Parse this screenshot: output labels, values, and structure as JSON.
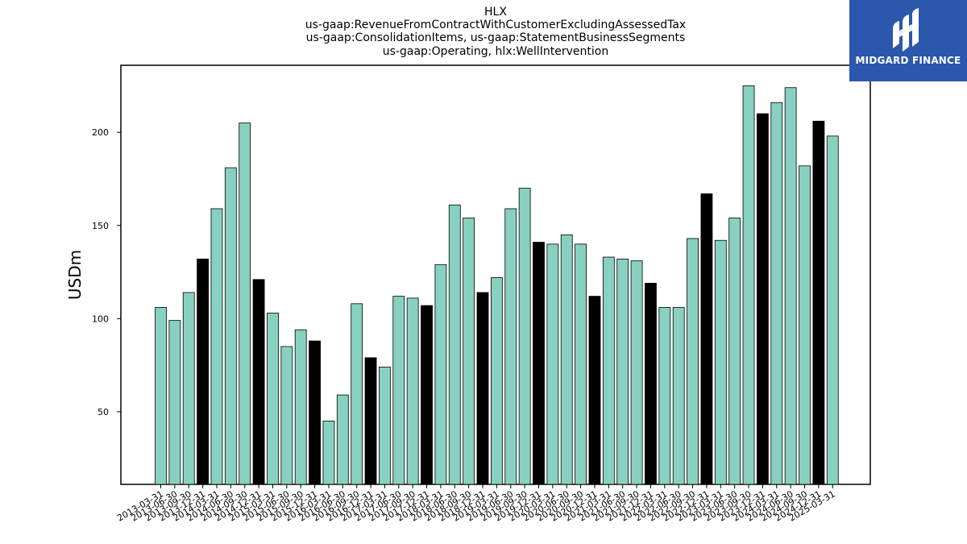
{
  "logo": {
    "text": "MIDGARD FINANCE",
    "color": "#2b57ad"
  },
  "chart_data": {
    "type": "bar",
    "title_lines": [
      "HLX",
      "us-gaap:RevenueFromContractWithCustomerExcludingAssessedTax",
      "us-gaap:ConsolidationItems, us-gaap:StatementBusinessSegments",
      "us-gaap:Operating, hlx:WellIntervention"
    ],
    "ylabel": "USDm",
    "xlabel": "",
    "ylim": [
      11,
      236
    ],
    "yticks": [
      50,
      100,
      150,
      200
    ],
    "grid": false,
    "colors": {
      "quarter": "#88d0c0",
      "annual": "#000000",
      "edge": "#000000"
    },
    "categories": [
      "2013-03-31",
      "2013-06-30",
      "2013-09-30",
      "2013-12-31",
      "2014-03-31",
      "2014-06-30",
      "2014-09-30",
      "2014-12-31",
      "2015-03-31",
      "2015-06-30",
      "2015-09-30",
      "2015-12-31",
      "2016-03-31",
      "2016-06-30",
      "2016-09-30",
      "2016-12-31",
      "2017-03-31",
      "2017-06-30",
      "2017-09-30",
      "2017-12-31",
      "2018-03-31",
      "2018-06-30",
      "2018-09-30",
      "2018-12-31",
      "2019-03-31",
      "2019-06-30",
      "2019-09-30",
      "2019-12-31",
      "2020-03-31",
      "2020-06-30",
      "2020-09-30",
      "2020-12-31",
      "2021-03-31",
      "2021-06-30",
      "2021-09-30",
      "2021-12-31",
      "2022-03-31",
      "2022-06-30",
      "2022-09-30",
      "2022-12-31",
      "2023-03-31",
      "2023-06-30",
      "2023-09-30",
      "2023-12-31",
      "2024-03-31",
      "2024-06-30",
      "2024-09-30",
      "2024-12-31",
      "2025-03-31"
    ],
    "values": [
      106,
      99,
      114,
      132,
      159,
      181,
      205,
      121,
      103,
      85,
      94,
      88,
      45,
      59,
      108,
      79,
      74,
      112,
      111,
      107,
      129,
      161,
      154,
      114,
      122,
      159,
      170,
      141,
      140,
      145,
      140,
      112,
      133,
      132,
      131,
      119,
      106,
      106,
      143,
      167,
      142,
      154,
      225,
      210,
      216,
      224,
      182,
      206,
      198
    ],
    "highlight": [
      false,
      false,
      false,
      true,
      false,
      false,
      false,
      true,
      false,
      false,
      false,
      true,
      false,
      false,
      false,
      true,
      false,
      false,
      false,
      true,
      false,
      false,
      false,
      true,
      false,
      false,
      false,
      true,
      false,
      false,
      false,
      true,
      false,
      false,
      false,
      true,
      false,
      false,
      false,
      true,
      false,
      false,
      false,
      true,
      false,
      false,
      false,
      true,
      false
    ]
  }
}
